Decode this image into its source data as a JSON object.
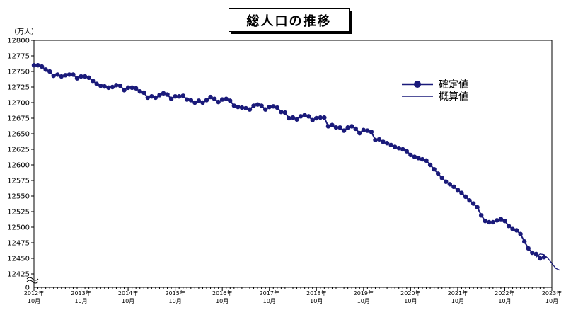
{
  "title": "総人口の推移",
  "unit_label": "（万人）",
  "colors": {
    "series": "#1a1a7a",
    "axis": "#000000"
  },
  "chart_data": {
    "type": "line",
    "title": "総人口の推移",
    "ylabel": "（万人）",
    "ylim": [
      12400,
      12800
    ],
    "y_break": true,
    "yticks": [
      12425,
      12450,
      12475,
      12500,
      12525,
      12550,
      12575,
      12600,
      12625,
      12650,
      12675,
      12700,
      12725,
      12750,
      12775,
      12800
    ],
    "ytick_zero": "0",
    "x_start": "2012-10",
    "xtick_labels": [
      [
        "2012年",
        "10月"
      ],
      [
        "2013年",
        "10月"
      ],
      [
        "2014年",
        "10月"
      ],
      [
        "2015年",
        "10月"
      ],
      [
        "2016年",
        "10月"
      ],
      [
        "2017年",
        "10月"
      ],
      [
        "2018年",
        "10月"
      ],
      [
        "2019年",
        "10月"
      ],
      [
        "2020年",
        "10月"
      ],
      [
        "2021年",
        "10月"
      ],
      [
        "2022年",
        "10月"
      ],
      [
        "2023年",
        "10月"
      ]
    ],
    "legend_position": "top-right",
    "series": [
      {
        "name": "確定値",
        "style": "line-markers",
        "start": "2012-10",
        "values": [
          12760,
          12760,
          12758,
          12753,
          12750,
          12743,
          12745,
          12742,
          12744,
          12745,
          12745,
          12739,
          12742,
          12742,
          12740,
          12735,
          12730,
          12727,
          12726,
          12724,
          12725,
          12728,
          12727,
          12720,
          12724,
          12724,
          12723,
          12718,
          12716,
          12708,
          12710,
          12708,
          12712,
          12715,
          12713,
          12706,
          12710,
          12710,
          12711,
          12705,
          12704,
          12700,
          12703,
          12700,
          12704,
          12709,
          12706,
          12701,
          12705,
          12706,
          12703,
          12695,
          12693,
          12692,
          12691,
          12689,
          12695,
          12697,
          12695,
          12689,
          12693,
          12694,
          12692,
          12685,
          12684,
          12675,
          12676,
          12673,
          12678,
          12680,
          12678,
          12672,
          12675,
          12676,
          12676,
          12662,
          12664,
          12660,
          12660,
          12655,
          12660,
          12662,
          12658,
          12651,
          12656,
          12655,
          12653,
          12640,
          12641,
          12637,
          12635,
          12632,
          12629,
          12627,
          12625,
          12622,
          12616,
          12613,
          12611,
          12609,
          12607,
          12600,
          12593,
          12586,
          12579,
          12573,
          12569,
          12565,
          12560,
          12555,
          12549,
          12543,
          12538,
          12532,
          12519,
          12510,
          12508,
          12508,
          12511,
          12513,
          12510,
          12502,
          12497,
          12495,
          12489,
          12477,
          12466,
          12459,
          12457,
          12450,
          12452
        ]
      },
      {
        "name": "概算値",
        "style": "line",
        "start": "2023-06",
        "values": [
          12452,
          12457,
          12456,
          12450,
          12442,
          12434,
          12431
        ]
      }
    ]
  }
}
